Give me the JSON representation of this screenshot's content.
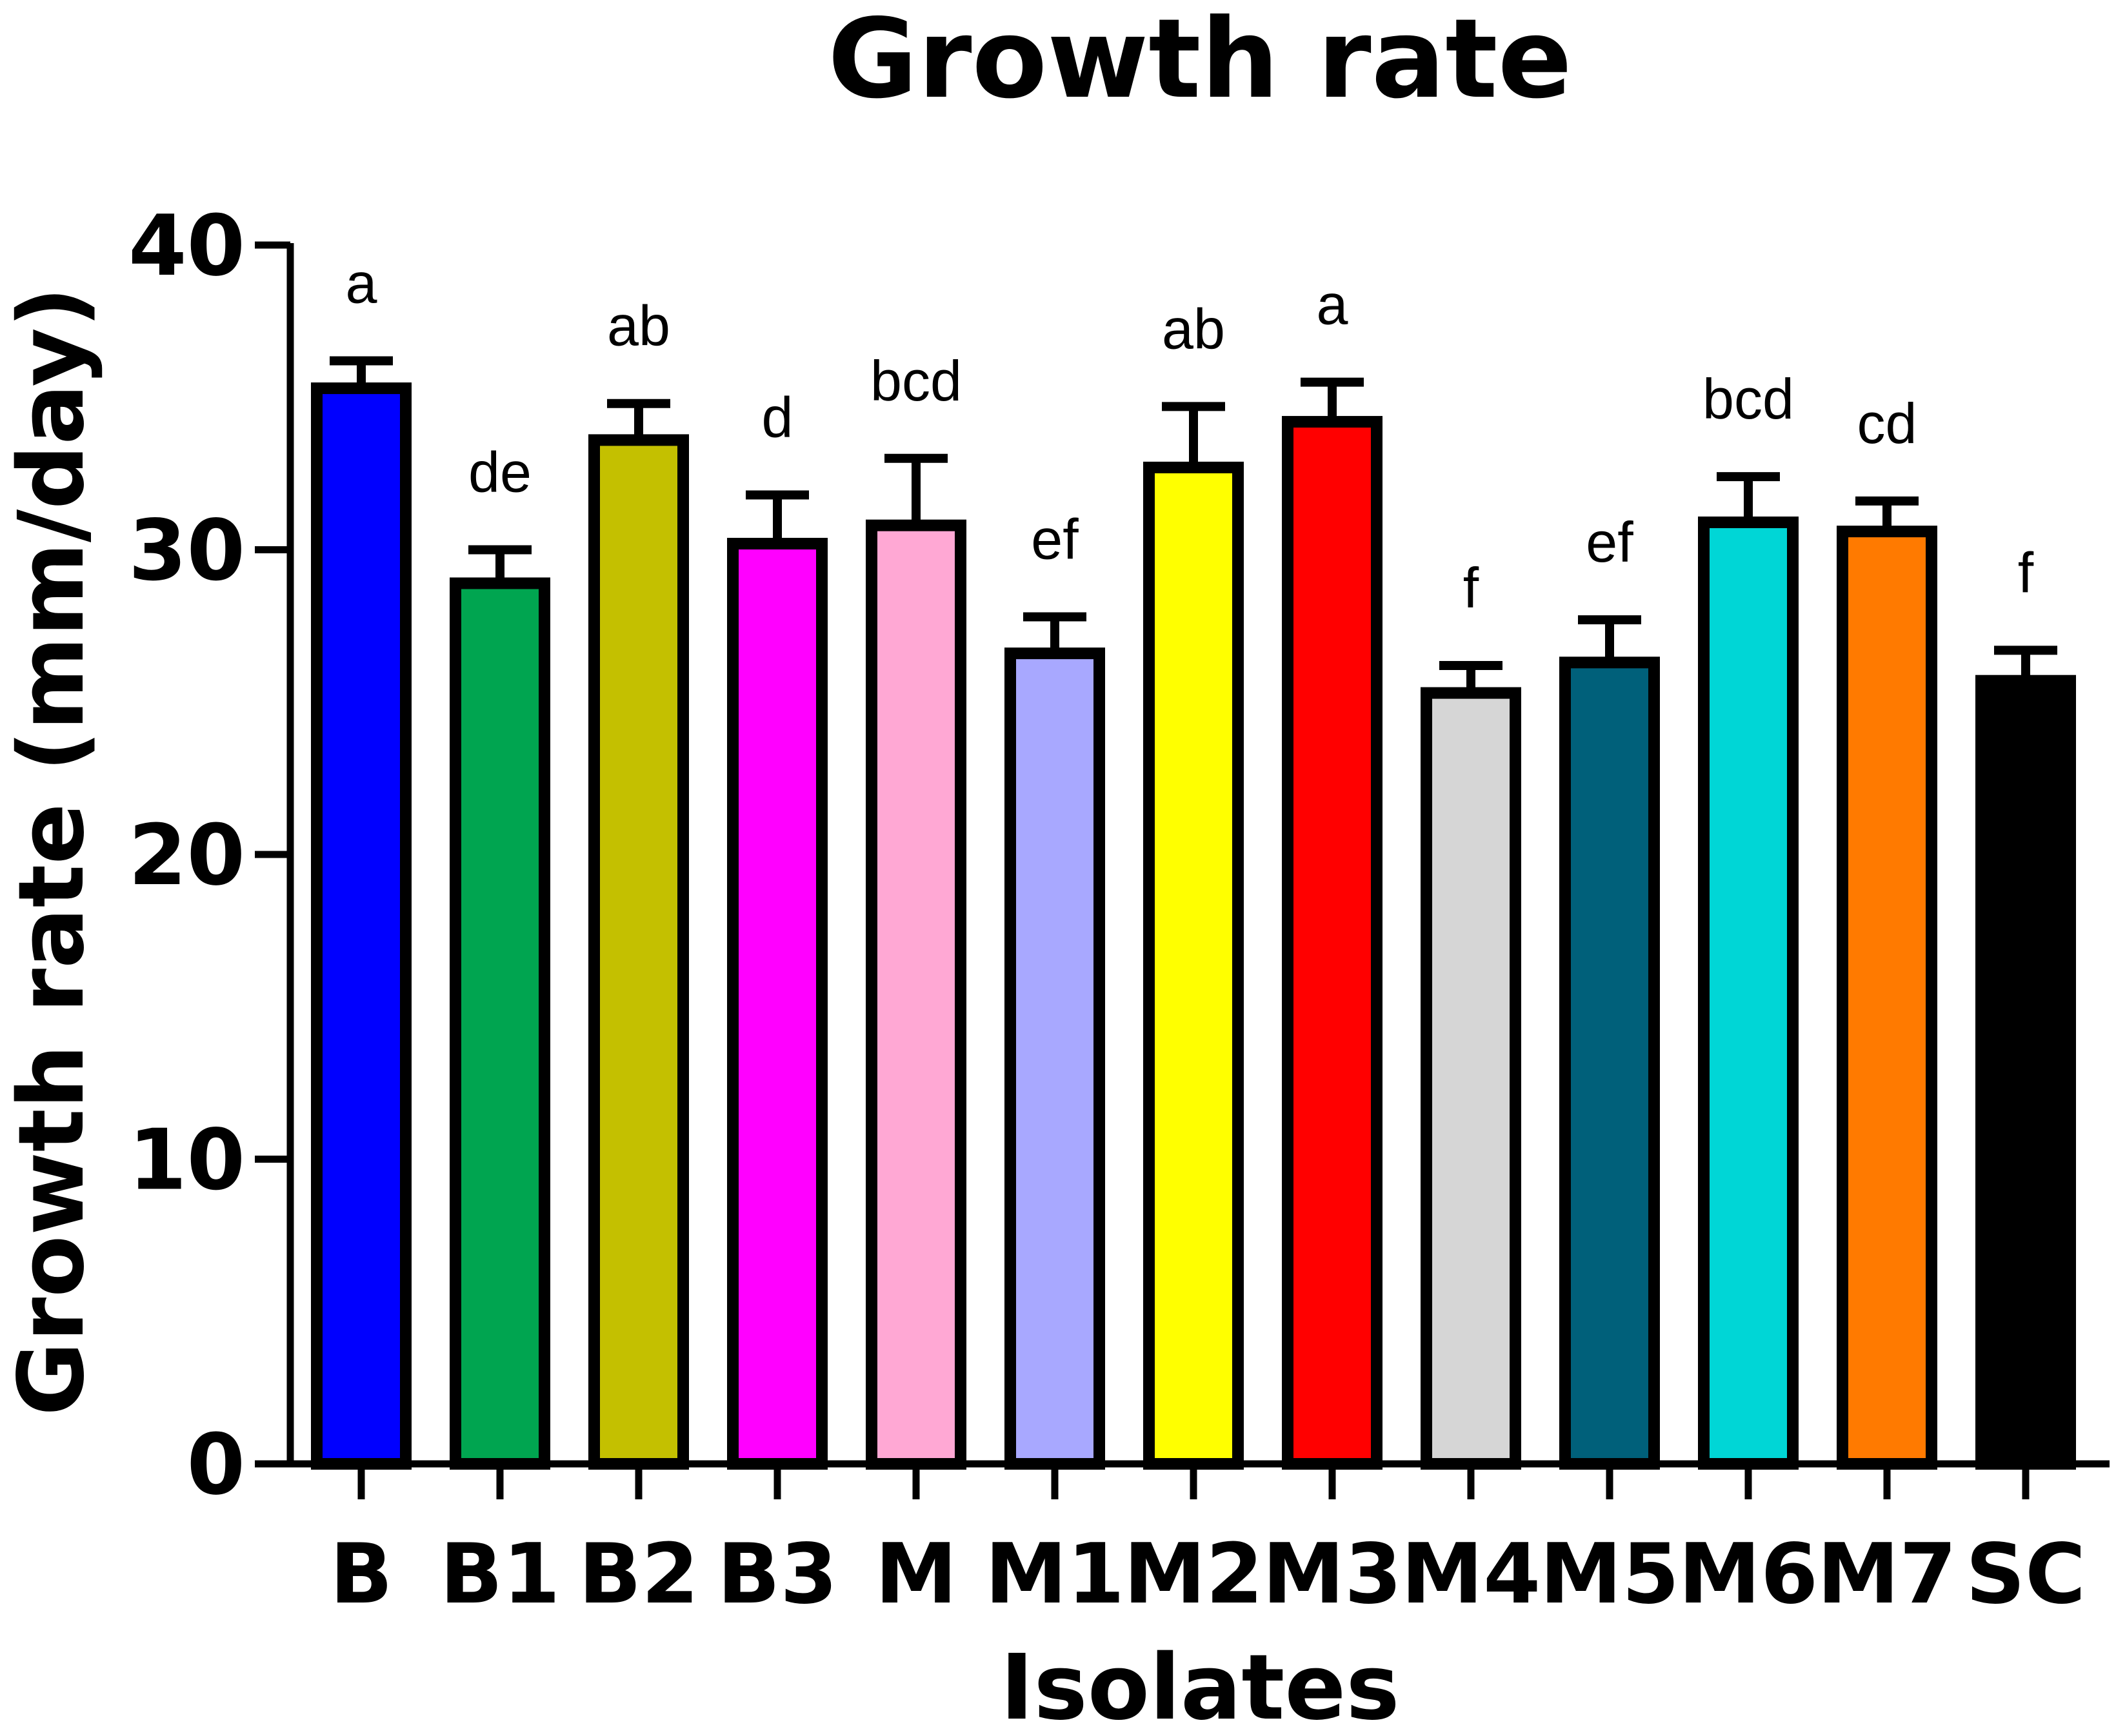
{
  "chart_data": {
    "type": "bar",
    "title": "Growth rate",
    "xlabel": "Isolates",
    "ylabel": "Growth rate (mm/day)",
    "ylim": [
      0,
      40
    ],
    "yticks": [
      0,
      10,
      20,
      30,
      40
    ],
    "categories": [
      "B",
      "B1",
      "B2",
      "B3",
      "M",
      "M1",
      "M2",
      "M3",
      "M4",
      "M5",
      "M6",
      "M7",
      "SC"
    ],
    "values": [
      35.3,
      28.9,
      33.6,
      30.2,
      30.8,
      26.6,
      32.7,
      34.2,
      25.3,
      26.3,
      30.9,
      30.6,
      25.7
    ],
    "errors": [
      0.9,
      1.1,
      1.2,
      1.6,
      2.2,
      1.2,
      2.0,
      1.3,
      0.9,
      1.4,
      1.5,
      1.0,
      1.0
    ],
    "significance": [
      "a",
      "de",
      "ab",
      "d",
      "bcd",
      "ef",
      "ab",
      "a",
      "f",
      "ef",
      "bcd",
      "cd",
      "f"
    ],
    "colors": [
      "#0000ff",
      "#00a550",
      "#c4c000",
      "#ff00ff",
      "#ffa8d4",
      "#a8a8ff",
      "#ffff00",
      "#ff0000",
      "#d6d6d6",
      "#00607a",
      "#00d6d6",
      "#ff7a00",
      "#000000"
    ],
    "grid": false,
    "legend": "none"
  }
}
